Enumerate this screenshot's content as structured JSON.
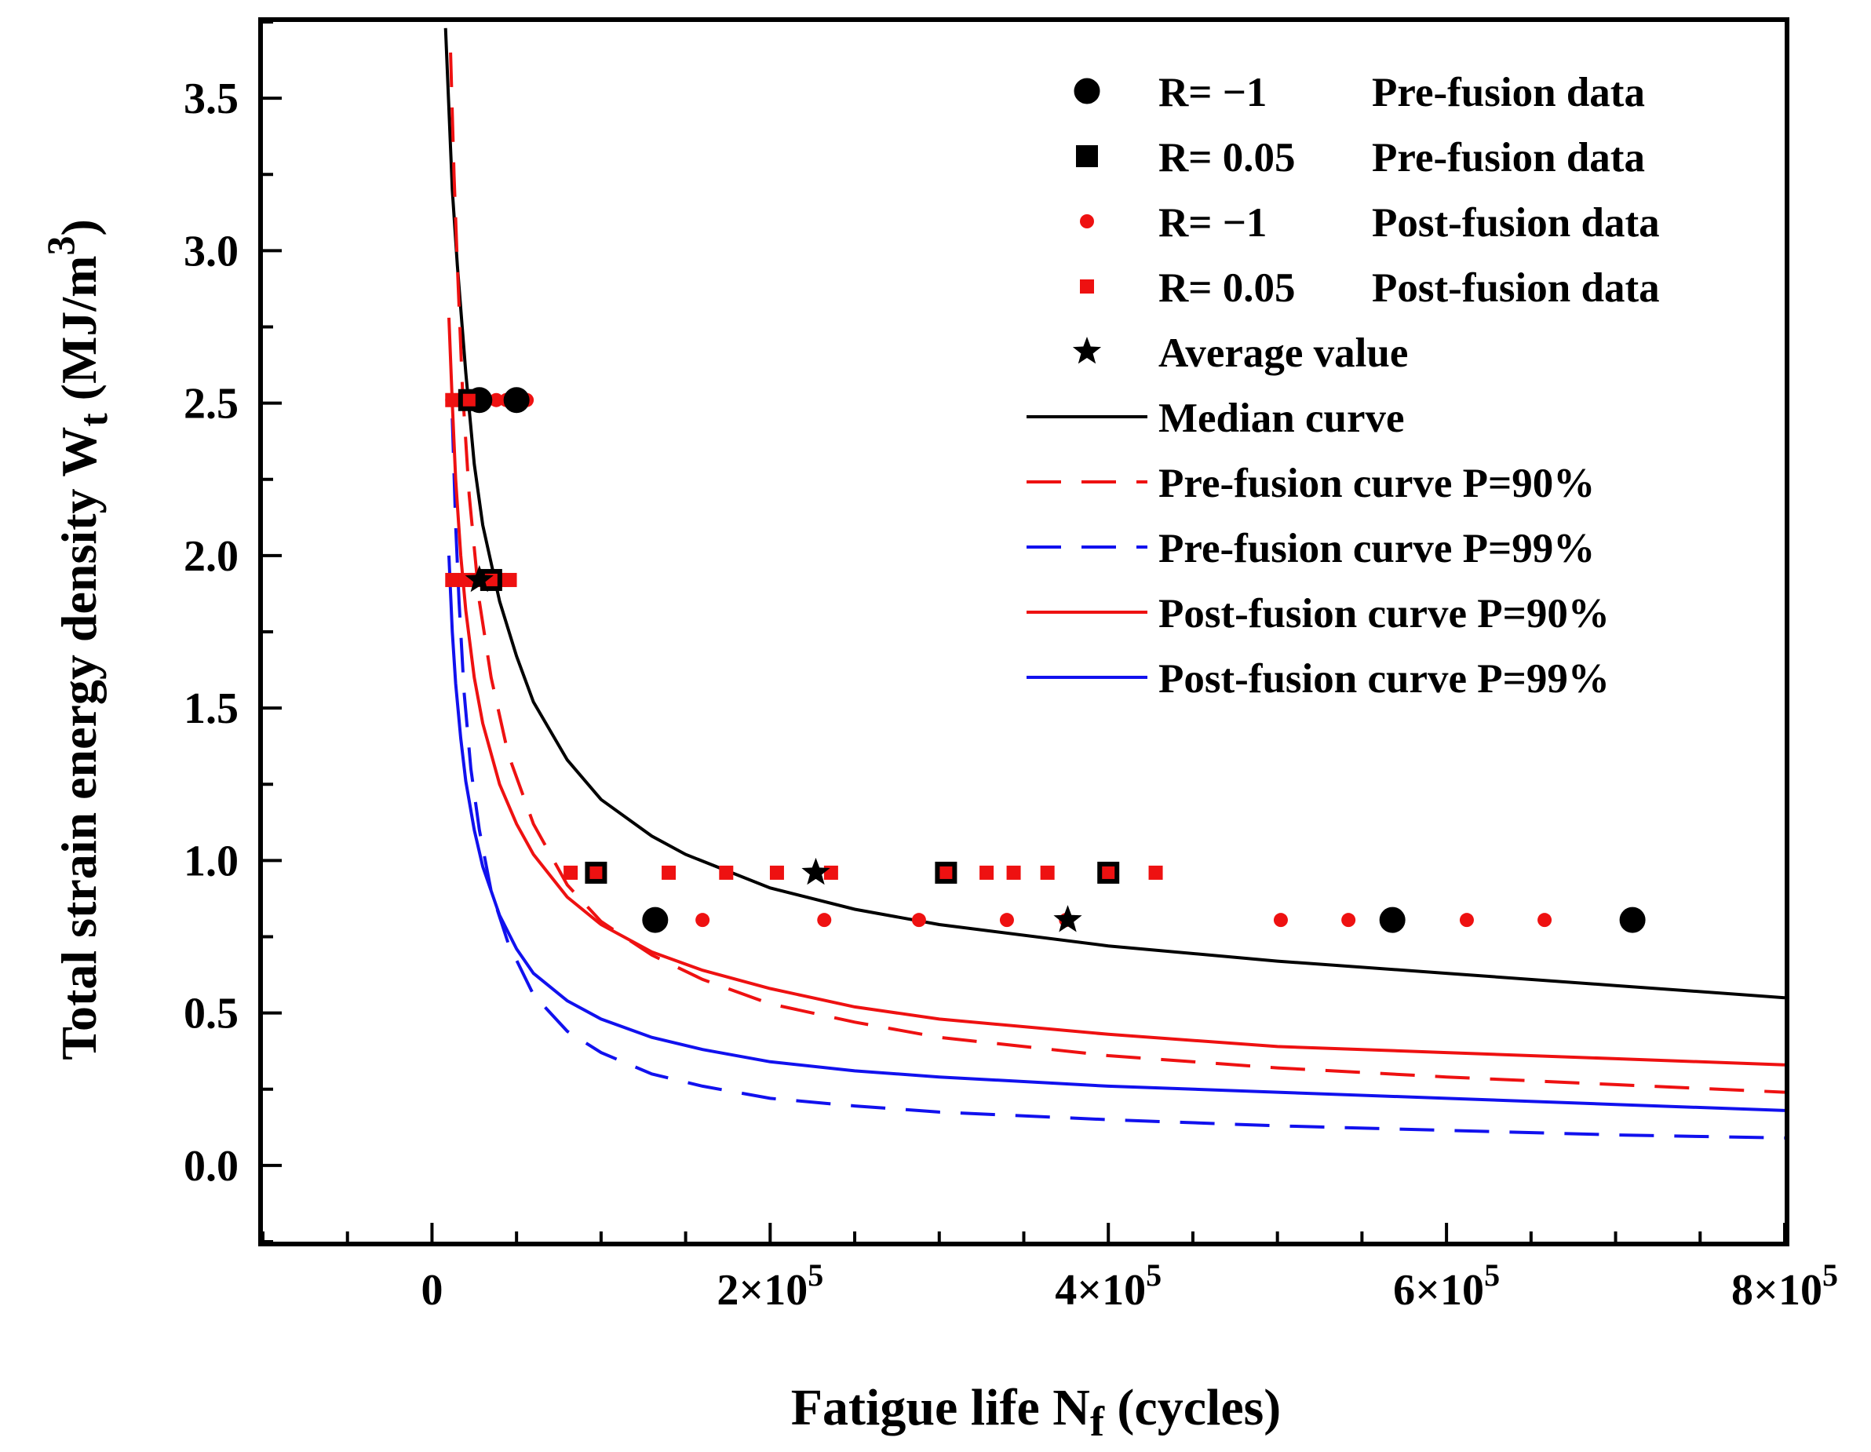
{
  "chart_data": {
    "type": "scatter",
    "xlabel": {
      "main": "Fatigue life N",
      "sub": "f",
      "suffix": " (cycles)"
    },
    "ylabel": {
      "main": "Total strain energy density  W",
      "sub": "t",
      "suffix": " (MJ/m",
      "sup": "3",
      "close": ")"
    },
    "xlim": [
      -100000,
      800000
    ],
    "ylim": [
      -0.25,
      3.75
    ],
    "x_ticks": [
      {
        "value": 0,
        "label": "0"
      },
      {
        "value": 200000,
        "label": "2×10",
        "exp": "5"
      },
      {
        "value": 400000,
        "label": "4×10",
        "exp": "5"
      },
      {
        "value": 600000,
        "label": "6×10",
        "exp": "5"
      },
      {
        "value": 800000,
        "label": "8×10",
        "exp": "5"
      }
    ],
    "y_ticks": [
      {
        "value": 0.0,
        "label": "0.0"
      },
      {
        "value": 0.5,
        "label": "0.5"
      },
      {
        "value": 1.0,
        "label": "1.0"
      },
      {
        "value": 1.5,
        "label": "1.5"
      },
      {
        "value": 2.0,
        "label": "2.0"
      },
      {
        "value": 2.5,
        "label": "2.5"
      },
      {
        "value": 3.0,
        "label": "3.0"
      },
      {
        "value": 3.5,
        "label": "3.5"
      }
    ],
    "series": [
      {
        "name": "R=  −1     Pre-fusion data",
        "label_a": "R=  −1",
        "label_b": "Pre-fusion data",
        "kind": "points",
        "marker": "circle",
        "color": "#000000",
        "outline": "#000000",
        "size": "large",
        "points": [
          [
            28000,
            2.51
          ],
          [
            50000,
            2.51
          ],
          [
            132000,
            0.805
          ],
          [
            568000,
            0.805
          ],
          [
            710000,
            0.805
          ]
        ]
      },
      {
        "name": "R= 0.05  Pre-fusion data",
        "label_a": "R= 0.05",
        "label_b": "Pre-fusion data",
        "kind": "points",
        "marker": "square",
        "color": "#000000",
        "outline": "#000000",
        "size": "large",
        "points": [
          [
            22000,
            2.51
          ],
          [
            35000,
            1.92
          ],
          [
            97000,
            0.96
          ],
          [
            304000,
            0.96
          ],
          [
            400000,
            0.96
          ]
        ]
      },
      {
        "name": "R=  −1     Post-fusion data",
        "label_a": "R=  −1",
        "label_b": "Post-fusion data",
        "kind": "points",
        "marker": "circle",
        "color": "#ee1111",
        "outline": "#ee1111",
        "size": "small",
        "points": [
          [
            12000,
            2.51
          ],
          [
            20000,
            2.51
          ],
          [
            38000,
            2.51
          ],
          [
            44000,
            2.51
          ],
          [
            56000,
            2.51
          ],
          [
            132000,
            0.805
          ],
          [
            160000,
            0.805
          ],
          [
            232000,
            0.805
          ],
          [
            288000,
            0.805
          ],
          [
            340000,
            0.805
          ],
          [
            375000,
            0.805
          ],
          [
            502000,
            0.805
          ],
          [
            542000,
            0.805
          ],
          [
            612000,
            0.805
          ],
          [
            658000,
            0.805
          ]
        ]
      },
      {
        "name": "R= 0.05  Post-fusion data",
        "label_a": "R= 0.05",
        "label_b": "Post-fusion data",
        "kind": "points",
        "marker": "square",
        "color": "#ee1111",
        "outline": "#ee1111",
        "size": "small",
        "points": [
          [
            12000,
            1.92
          ],
          [
            20000,
            1.92
          ],
          [
            26000,
            1.92
          ],
          [
            40000,
            1.92
          ],
          [
            46000,
            1.92
          ],
          [
            12000,
            2.51
          ],
          [
            26000,
            2.51
          ],
          [
            82000,
            0.96
          ],
          [
            97000,
            0.96
          ],
          [
            140000,
            0.96
          ],
          [
            174000,
            0.96
          ],
          [
            204000,
            0.96
          ],
          [
            236000,
            0.96
          ],
          [
            304000,
            0.96
          ],
          [
            328000,
            0.96
          ],
          [
            344000,
            0.96
          ],
          [
            364000,
            0.96
          ],
          [
            400000,
            0.96
          ],
          [
            428000,
            0.96
          ]
        ]
      },
      {
        "name": "Average value",
        "label_a": "Average value",
        "label_b": "",
        "kind": "points",
        "marker": "star",
        "color": "#000000",
        "outline": "#000000",
        "size": "large",
        "points": [
          [
            28000,
            1.92
          ],
          [
            227000,
            0.96
          ],
          [
            376000,
            0.805
          ]
        ]
      },
      {
        "name": "Median curve",
        "label_a": "Median curve",
        "label_b": "",
        "kind": "curve",
        "style": "solid",
        "color": "#000000",
        "x": [
          8000,
          12000,
          15000,
          20000,
          25000,
          30000,
          40000,
          50000,
          60000,
          80000,
          100000,
          130000,
          150000,
          200000,
          250000,
          300000,
          400000,
          500000,
          600000,
          700000,
          800000
        ],
        "y": [
          3.73,
          3.2,
          2.95,
          2.6,
          2.3,
          2.1,
          1.85,
          1.67,
          1.52,
          1.33,
          1.2,
          1.08,
          1.02,
          0.91,
          0.84,
          0.79,
          0.72,
          0.67,
          0.63,
          0.59,
          0.55
        ]
      },
      {
        "name": "Pre-fusion curve P=90%",
        "label_a": "Pre-fusion curve P=90%",
        "label_b": "",
        "kind": "curve",
        "style": "dashed",
        "color": "#ee1111",
        "x": [
          11000,
          13000,
          15000,
          18000,
          22000,
          28000,
          35000,
          45000,
          60000,
          80000,
          100000,
          130000,
          160000,
          200000,
          250000,
          300000,
          400000,
          500000,
          600000,
          700000,
          800000
        ],
        "y": [
          3.65,
          3.25,
          2.95,
          2.55,
          2.2,
          1.85,
          1.6,
          1.35,
          1.12,
          0.92,
          0.8,
          0.69,
          0.61,
          0.53,
          0.47,
          0.42,
          0.36,
          0.32,
          0.29,
          0.265,
          0.24
        ]
      },
      {
        "name": "Pre-fusion curve P=99%",
        "label_a": "Pre-fusion curve P=99%",
        "label_b": "",
        "kind": "curve",
        "style": "dashed",
        "color": "#1111ee",
        "x": [
          12000,
          14000,
          16000,
          19000,
          23000,
          28000,
          35000,
          45000,
          60000,
          80000,
          100000,
          130000,
          160000,
          200000,
          250000,
          300000,
          400000,
          500000,
          600000,
          700000,
          800000
        ],
        "y": [
          2.45,
          2.1,
          1.85,
          1.55,
          1.3,
          1.1,
          0.9,
          0.73,
          0.56,
          0.44,
          0.37,
          0.3,
          0.26,
          0.22,
          0.195,
          0.175,
          0.15,
          0.13,
          0.115,
          0.1,
          0.09
        ]
      },
      {
        "name": "Post-fusion curve P=90%",
        "label_a": "Post-fusion curve P=90%",
        "label_b": "",
        "kind": "curve",
        "style": "solid",
        "color": "#ee1111",
        "x": [
          10000,
          12000,
          14000,
          17000,
          20000,
          25000,
          30000,
          40000,
          50000,
          60000,
          80000,
          100000,
          130000,
          160000,
          200000,
          250000,
          300000,
          400000,
          500000,
          600000,
          700000,
          800000
        ],
        "y": [
          2.78,
          2.5,
          2.25,
          2.0,
          1.82,
          1.6,
          1.45,
          1.25,
          1.12,
          1.02,
          0.88,
          0.79,
          0.7,
          0.64,
          0.58,
          0.52,
          0.48,
          0.43,
          0.39,
          0.37,
          0.35,
          0.33
        ]
      },
      {
        "name": "Post-fusion curve P=99%",
        "label_a": "Post-fusion curve P=99%",
        "label_b": "",
        "kind": "curve",
        "style": "solid",
        "color": "#1111ee",
        "x": [
          10000,
          12000,
          14000,
          17000,
          20000,
          25000,
          30000,
          40000,
          50000,
          60000,
          80000,
          100000,
          130000,
          160000,
          200000,
          250000,
          300000,
          400000,
          500000,
          600000,
          700000,
          800000
        ],
        "y": [
          2.0,
          1.75,
          1.58,
          1.4,
          1.26,
          1.1,
          0.98,
          0.82,
          0.71,
          0.63,
          0.54,
          0.48,
          0.42,
          0.38,
          0.34,
          0.31,
          0.29,
          0.26,
          0.24,
          0.22,
          0.2,
          0.18
        ]
      }
    ],
    "legend_position": "top-right",
    "grid": false
  }
}
